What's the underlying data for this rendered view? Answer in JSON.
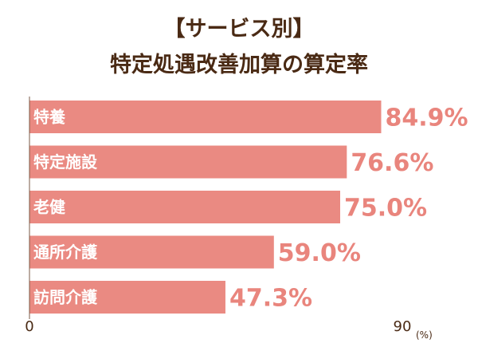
{
  "chart_data": {
    "type": "bar",
    "orientation": "horizontal",
    "title": "【サービス別】",
    "subtitle": "特定処遇改善加算の算定率",
    "categories": [
      "特養",
      "特定施設",
      "老健",
      "通所介護",
      "訪問介護"
    ],
    "values": [
      84.9,
      76.6,
      75.0,
      59.0,
      47.3
    ],
    "value_labels": [
      "84.9%",
      "76.6%",
      "75.0%",
      "59.0%",
      "47.3%"
    ],
    "xlim": [
      0,
      90
    ],
    "x_ticks": [
      "0",
      "90"
    ],
    "x_unit": "(%)",
    "grid": false,
    "colors": {
      "bar": "#ea8a82",
      "value_label": "#e9857d",
      "title": "#4a2a14",
      "axis": "#7a5a44"
    }
  }
}
